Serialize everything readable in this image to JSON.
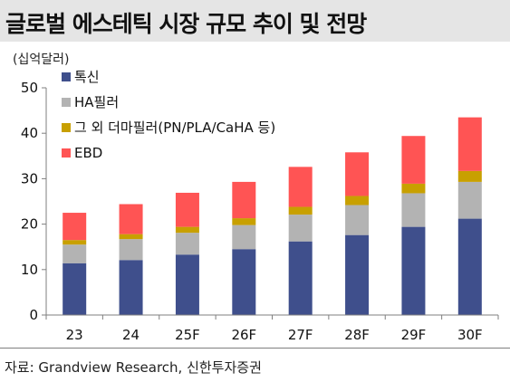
{
  "page": {
    "title": "글로벌 에스테틱 시장 규모 추이 및 전망",
    "source": "자료: Grandview Research, 신한투자증권"
  },
  "chart_data": {
    "type": "bar",
    "stacked": true,
    "title": "글로벌 에스테틱 시장 규모 추이 및 전망",
    "ylabel": "(십억달러)",
    "xlabel": "",
    "ylim": [
      0,
      50
    ],
    "yticks": [
      0,
      10,
      20,
      30,
      40,
      50
    ],
    "grid": false,
    "legend_position": "top-left",
    "categories": [
      "23",
      "24",
      "25F",
      "26F",
      "27F",
      "28F",
      "29F",
      "30F"
    ],
    "series": [
      {
        "name": "톡신",
        "color": "#3f4f8c",
        "values": [
          11.4,
          12.1,
          13.3,
          14.5,
          16.2,
          17.6,
          19.4,
          21.2
        ]
      },
      {
        "name": "HA필러",
        "color": "#b3b3b3",
        "values": [
          4.1,
          4.6,
          4.8,
          5.3,
          5.9,
          6.6,
          7.4,
          8.1
        ]
      },
      {
        "name": "그 외 더마필러(PN/PLA/CaHA 등)",
        "color": "#c8a000",
        "values": [
          1.0,
          1.1,
          1.3,
          1.5,
          1.7,
          2.0,
          2.1,
          2.4
        ]
      },
      {
        "name": "EBD",
        "color": "#ff5454",
        "values": [
          6.0,
          6.6,
          7.5,
          8.0,
          8.8,
          9.6,
          10.5,
          11.8
        ]
      }
    ]
  }
}
